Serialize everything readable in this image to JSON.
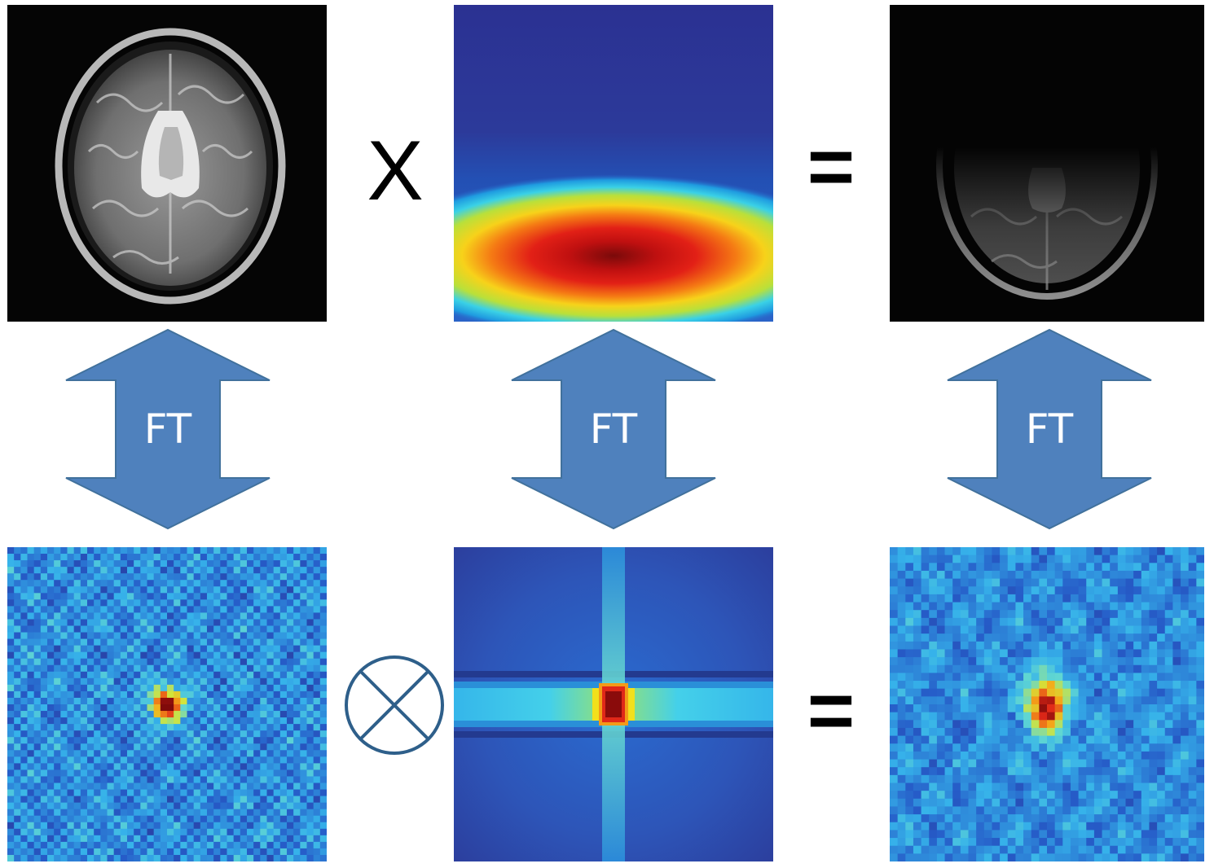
{
  "operators": {
    "multiply": "X",
    "equals_top": "=",
    "equals_bottom": "="
  },
  "arrows": [
    {
      "label": "FT"
    },
    {
      "label": "FT"
    },
    {
      "label": "FT"
    }
  ],
  "panels": {
    "top_left": "brain-mri-image",
    "top_middle": "gaussian-weighting-heatmap",
    "top_right": "weighted-brain-image",
    "bottom_left": "brain-kspace-spectrum",
    "bottom_middle": "weighting-kspace-spectrum",
    "bottom_right": "convolved-kspace-spectrum"
  },
  "colors": {
    "arrow_fill": "#4f81bd",
    "arrow_stroke": "#41719c",
    "convolution_stroke": "#2e5f8a",
    "heatmap_low": "#2b2f8f",
    "heatmap_high": "#8a0b0b"
  }
}
